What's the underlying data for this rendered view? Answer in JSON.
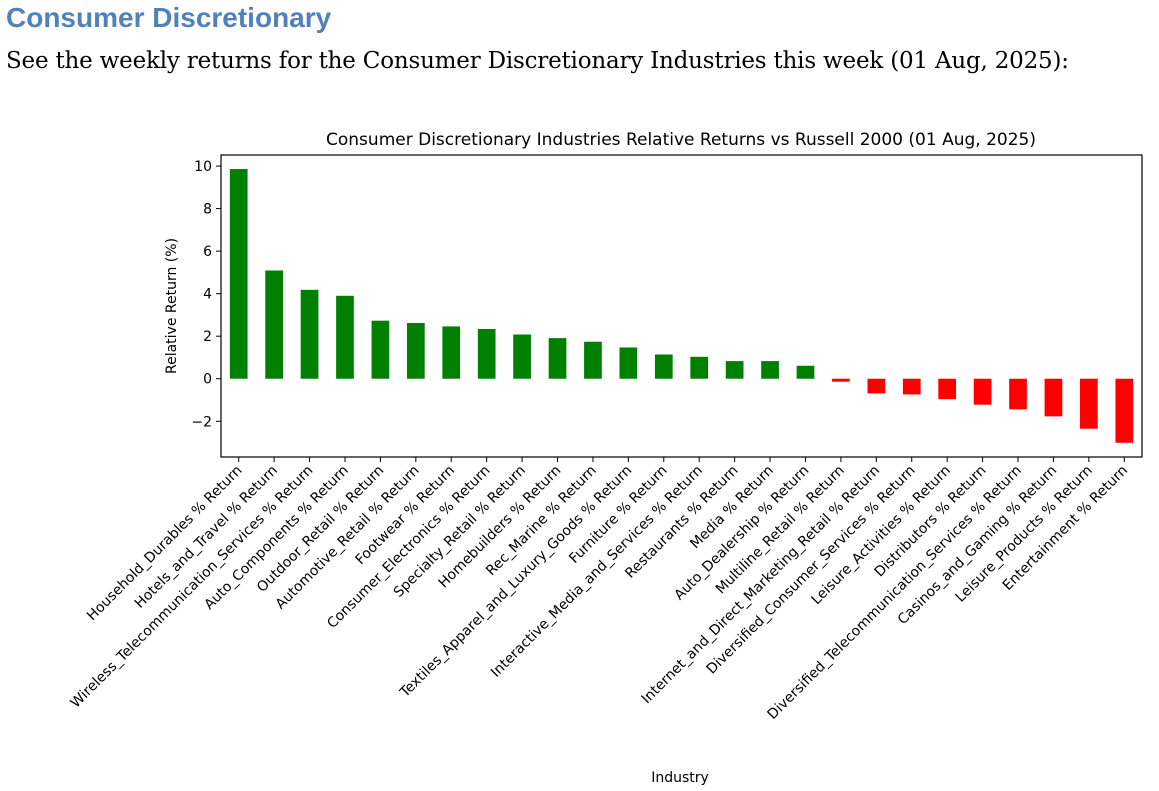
{
  "page": {
    "heading": "Consumer Discretionary",
    "intro": "See the weekly returns for the Consumer Discretionary Industries this week (01 Aug, 2025):"
  },
  "colors": {
    "heading": "#4f81bd",
    "positive": "#008000",
    "negative": "#ff0000"
  },
  "chart_data": {
    "type": "bar",
    "title": "Consumer Discretionary Industries Relative Returns vs Russell 2000 (01 Aug, 2025)",
    "xlabel": "Industry",
    "ylabel": "Relative Return (%)",
    "ylim": [
      -3.68,
      10.52
    ],
    "yticks": [
      -2,
      0,
      2,
      4,
      6,
      8,
      10
    ],
    "ytick_labels": [
      "−2",
      "0",
      "2",
      "4",
      "6",
      "8",
      "10"
    ],
    "grid": false,
    "categories": [
      "Household_Durables % Return",
      "Hotels_and_Travel % Return",
      "Wireless_Telecommunication_Services % Return",
      "Auto_Components % Return",
      "Outdoor_Retail % Return",
      "Automotive_Retail % Return",
      "Footwear % Return",
      "Consumer_Electronics % Return",
      "Specialty_Retail % Return",
      "Homebuilders % Return",
      "Rec_Marine % Return",
      "Textiles_Apparel_and_Luxury_Goods % Return",
      "Furniture % Return",
      "Interactive_Media_and_Services % Return",
      "Restaurants % Return",
      "Media % Return",
      "Auto_Dealership % Return",
      "Multiline_Retail % Return",
      "Internet_and_Direct_Marketing_Retail % Return",
      "Diversified_Consumer_Services % Return",
      "Leisure_Activities % Return",
      "Distributors % Return",
      "Diversified_Telecommunication_Services % Return",
      "Casinos_and_Gaming % Return",
      "Leisure_Products % Return",
      "Entertainment % Return"
    ],
    "values": [
      9.86,
      5.09,
      4.18,
      3.9,
      2.73,
      2.62,
      2.46,
      2.34,
      2.08,
      1.91,
      1.74,
      1.47,
      1.14,
      1.03,
      0.83,
      0.83,
      0.61,
      -0.14,
      -0.69,
      -0.74,
      -0.96,
      -1.22,
      -1.44,
      -1.77,
      -2.35,
      -3.01
    ]
  }
}
